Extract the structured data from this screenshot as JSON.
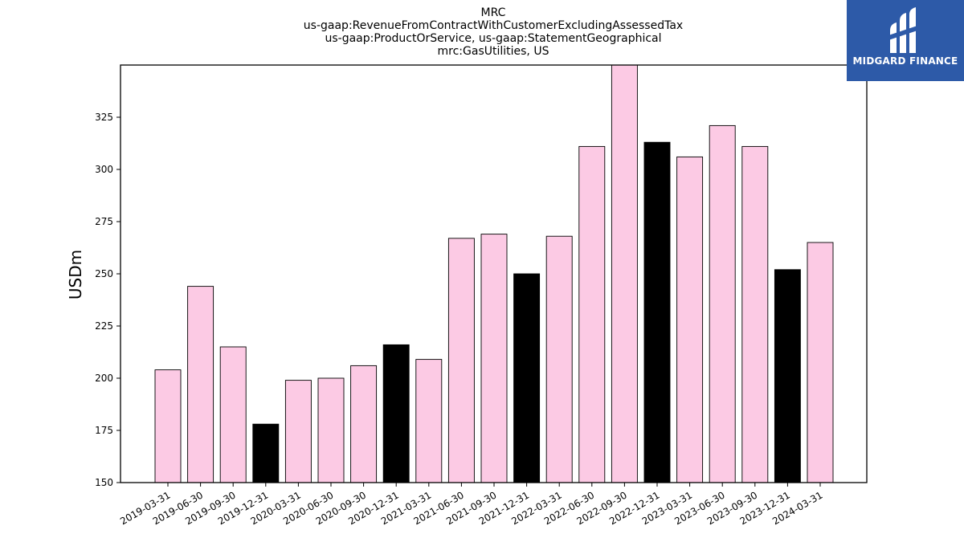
{
  "logo": {
    "text": "MIDGARD FINANCE",
    "icon": "midgard-logo-icon",
    "bg": "#2d5aa8"
  },
  "chart_data": {
    "type": "bar",
    "title": [
      "MRC",
      "us-gaap:RevenueFromContractWithCustomerExcludingAssessedTax",
      "us-gaap:ProductOrService, us-gaap:StatementGeographical",
      "mrc:GasUtilities, US"
    ],
    "xlabel": "",
    "ylabel": "USDm",
    "ylim": [
      150,
      350
    ],
    "yticks": [
      150,
      175,
      200,
      225,
      250,
      275,
      300,
      325
    ],
    "grid": false,
    "colors": {
      "quarter": "#fccae4",
      "year_end": "#000000",
      "edge": "#000000"
    },
    "categories": [
      "2019-03-31",
      "2019-06-30",
      "2019-09-30",
      "2019-12-31",
      "2020-03-31",
      "2020-06-30",
      "2020-09-30",
      "2020-12-31",
      "2021-03-31",
      "2021-06-30",
      "2021-09-30",
      "2021-12-31",
      "2022-03-31",
      "2022-06-30",
      "2022-09-30",
      "2022-12-31",
      "2023-03-31",
      "2023-06-30",
      "2023-09-30",
      "2023-12-31",
      "2024-03-31"
    ],
    "values": [
      204,
      244,
      215,
      178,
      199,
      200,
      206,
      216,
      209,
      267,
      269,
      250,
      268,
      311,
      350,
      313,
      306,
      321,
      311,
      252,
      265
    ],
    "highlight": [
      false,
      false,
      false,
      true,
      false,
      false,
      false,
      true,
      false,
      false,
      false,
      true,
      false,
      false,
      false,
      true,
      false,
      false,
      false,
      true,
      false
    ]
  }
}
